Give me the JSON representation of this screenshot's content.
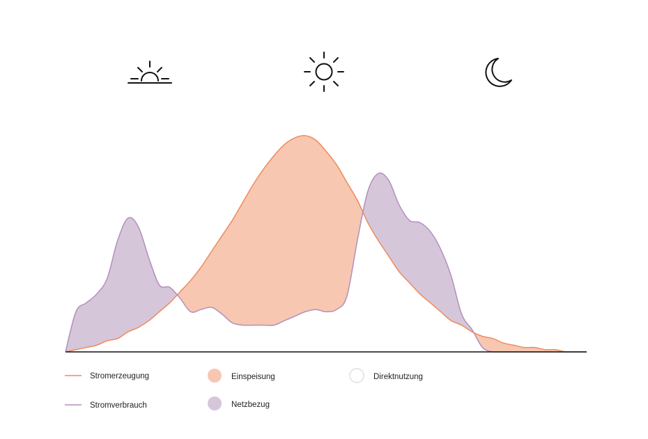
{
  "chart_data": {
    "type": "area",
    "title": "",
    "xlabel": "",
    "ylabel": "",
    "grid": false,
    "legend_position": "bottom-left",
    "x": [
      0,
      2,
      4,
      6,
      8,
      10,
      12,
      14,
      16,
      18,
      20,
      22,
      24,
      26,
      28,
      30,
      32,
      34,
      36,
      38,
      40,
      42,
      44,
      46,
      48,
      50,
      52,
      54,
      56,
      58,
      60,
      62,
      64,
      66,
      68,
      70,
      72,
      74,
      76,
      78,
      80,
      82,
      84,
      86,
      88,
      90,
      92,
      94,
      96,
      98,
      100
    ],
    "xlim": [
      0,
      100
    ],
    "ylim": [
      0,
      100
    ],
    "series": [
      {
        "name": "Stromerzeugung",
        "color": "#ee8a5b",
        "values": [
          0,
          1,
          2,
          3,
          5,
          6,
          9,
          11,
          14,
          18,
          22,
          27,
          32,
          38,
          45,
          52,
          59,
          67,
          75,
          82,
          88,
          93,
          96,
          97,
          95,
          90,
          84,
          76,
          68,
          58,
          50,
          43,
          36,
          31,
          26,
          22,
          18,
          14,
          12,
          9,
          7,
          6,
          4,
          3,
          2,
          2,
          1,
          1,
          0,
          0,
          0
        ]
      },
      {
        "name": "Stromverbrauch",
        "color": "#b28fbc",
        "values": [
          0,
          18,
          22,
          26,
          33,
          50,
          60,
          56,
          42,
          30,
          29,
          24,
          18,
          19,
          20,
          17,
          13,
          12,
          12,
          12,
          12,
          14,
          16,
          18,
          19,
          18,
          19,
          25,
          50,
          72,
          80,
          77,
          66,
          59,
          58,
          54,
          46,
          34,
          17,
          10,
          2,
          0,
          0,
          0,
          0,
          0,
          0,
          0,
          0,
          0,
          0
        ]
      }
    ],
    "fills": {
      "einspeisung": "#f7c7b1",
      "netzbezug": "#d6c6da",
      "direktnutzung": "#ffffff"
    },
    "icons": [
      "sunrise-icon",
      "sun-icon",
      "moon-icon"
    ],
    "legend": [
      {
        "label": "Stromerzeugung",
        "kind": "line",
        "color": "#ee8a5b"
      },
      {
        "label": "Stromverbrauch",
        "kind": "line",
        "color": "#b28fbc"
      },
      {
        "label": "Einspeisung",
        "kind": "dot",
        "color": "#f7c7b1"
      },
      {
        "label": "Netzbezug",
        "kind": "dot",
        "color": "#d6c6da"
      },
      {
        "label": "Direktnutzung",
        "kind": "dot",
        "color": "#ffffff"
      }
    ]
  }
}
